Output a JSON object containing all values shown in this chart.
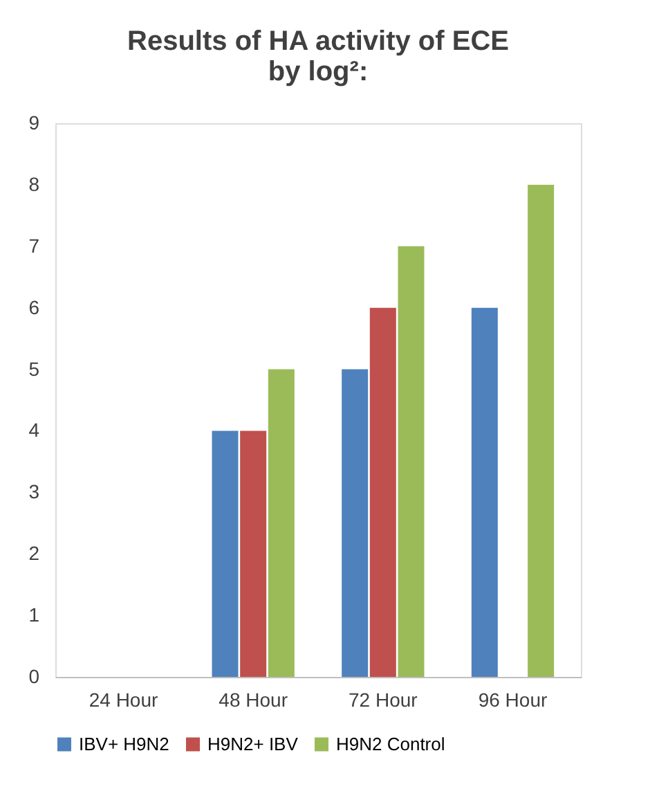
{
  "chart_data": {
    "type": "bar",
    "title": "Results of HA activity of ECE\nby log²:",
    "categories": [
      "24 Hour",
      "48 Hour",
      "72 Hour",
      "96 Hour"
    ],
    "series": [
      {
        "name": "IBV+ H9N2",
        "color": "#4f81bd",
        "values": [
          0,
          4,
          5,
          6
        ]
      },
      {
        "name": "H9N2+ IBV",
        "color": "#c0504d",
        "values": [
          0,
          4,
          6,
          0
        ]
      },
      {
        "name": "H9N2 Control",
        "color": "#9bbb59",
        "values": [
          0,
          5,
          7,
          8
        ]
      }
    ],
    "ylim": [
      0,
      9
    ],
    "yticks": [
      0,
      1,
      2,
      3,
      4,
      5,
      6,
      7,
      8,
      9
    ],
    "grid": false,
    "legend": "bottom"
  }
}
